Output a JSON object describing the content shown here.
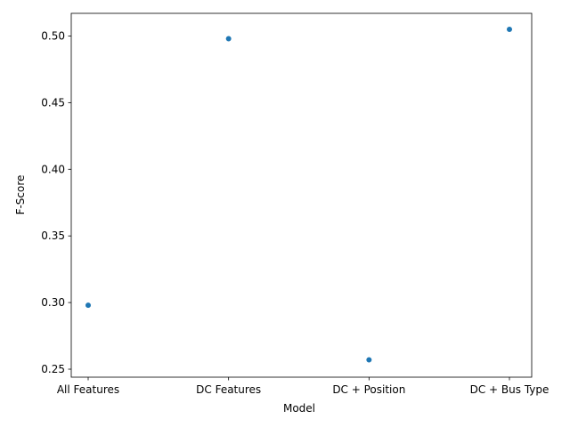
{
  "chart_data": {
    "type": "scatter",
    "title": "",
    "xlabel": "Model",
    "ylabel": "F-Score",
    "categories": [
      "All Features",
      "DC Features",
      "DC + Position",
      "DC + Bus Type"
    ],
    "values": [
      0.298,
      0.498,
      0.257,
      0.505
    ],
    "ylim": [
      0.244,
      0.517
    ],
    "yticks": [
      "0.25",
      "0.30",
      "0.35",
      "0.40",
      "0.45",
      "0.50"
    ],
    "grid": false,
    "legend": "none",
    "marker_color": "#1f77b4"
  }
}
